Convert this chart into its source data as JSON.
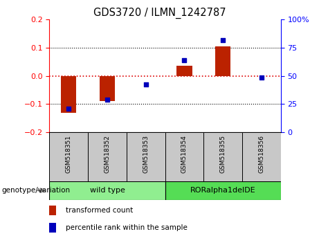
{
  "title": "GDS3720 / ILMN_1242787",
  "categories": [
    "GSM518351",
    "GSM518352",
    "GSM518353",
    "GSM518354",
    "GSM518355",
    "GSM518356"
  ],
  "red_bars": [
    -0.13,
    -0.09,
    0.0,
    0.035,
    0.105,
    0.0
  ],
  "blue_dots_left": [
    -0.115,
    -0.085,
    -0.03,
    0.057,
    0.128,
    -0.005
  ],
  "ylim_left": [
    -0.2,
    0.2
  ],
  "ylim_right": [
    0,
    100
  ],
  "yticks_left": [
    -0.2,
    -0.1,
    0.0,
    0.1,
    0.2
  ],
  "yticks_right": [
    0,
    25,
    50,
    75,
    100
  ],
  "groups": [
    {
      "label": "wild type",
      "indices": [
        0,
        1,
        2
      ],
      "color": "#90EE90"
    },
    {
      "label": "RORalpha1delDE",
      "indices": [
        3,
        4,
        5
      ],
      "color": "#55DD55"
    }
  ],
  "group_label": "genotype/variation",
  "legend_red": "transformed count",
  "legend_blue": "percentile rank within the sample",
  "bar_color": "#BB2200",
  "dot_color": "#0000BB",
  "zero_line_color": "#DD0000",
  "grid_color": "#000000",
  "bg_plot": "#FFFFFF",
  "bg_xtick": "#C8C8C8",
  "bar_width": 0.4,
  "title_fontsize": 10.5,
  "tick_fontsize": 8,
  "label_fontsize": 7.5,
  "group_fontsize": 8
}
